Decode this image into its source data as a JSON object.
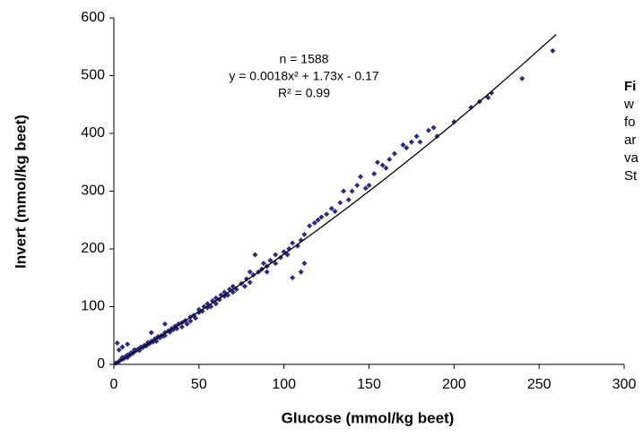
{
  "chart_data": {
    "type": "scatter",
    "xlabel": "Glucose (mmol/kg beet)",
    "ylabel": "Invert (mmol/kg beet)",
    "annotations": [
      "n = 1588",
      "y = 0.0018x² + 1.73x - 0.17",
      "R² = 0.99"
    ],
    "caption": [
      "Fi",
      "w",
      "fo",
      "ar",
      "va",
      "St"
    ],
    "xlim": [
      0,
      300
    ],
    "ylim": [
      0,
      600
    ],
    "xticks": [
      0,
      50,
      100,
      150,
      200,
      250,
      300
    ],
    "yticks": [
      0,
      100,
      200,
      300,
      400,
      500,
      600
    ],
    "color": "#2a2a86",
    "line_color": "#000000",
    "caption_color": "#1a56d6",
    "x": [
      1,
      2,
      3,
      4,
      5,
      5,
      6,
      7,
      8,
      8,
      9,
      10,
      10,
      11,
      12,
      12,
      13,
      14,
      15,
      15,
      16,
      17,
      18,
      19,
      20,
      20,
      21,
      22,
      23,
      24,
      25,
      25,
      26,
      27,
      28,
      29,
      30,
      30,
      32,
      33,
      34,
      35,
      36,
      37,
      38,
      40,
      40,
      42,
      43,
      45,
      45,
      47,
      48,
      50,
      50,
      52,
      53,
      55,
      55,
      57,
      58,
      60,
      60,
      62,
      63,
      65,
      65,
      67,
      68,
      70,
      70,
      72,
      75,
      77,
      78,
      80,
      80,
      82,
      83,
      85,
      87,
      88,
      90,
      90,
      92,
      95,
      95,
      98,
      100,
      102,
      103,
      105,
      105,
      108,
      110,
      110,
      112,
      112,
      115,
      118,
      120,
      122,
      125,
      128,
      130,
      133,
      135,
      138,
      140,
      143,
      145,
      148,
      150,
      153,
      155,
      158,
      160,
      162,
      165,
      170,
      172,
      175,
      178,
      180,
      185,
      188,
      190,
      200,
      210,
      215,
      220,
      222,
      240,
      258,
      2,
      5,
      3,
      8,
      22,
      30
    ],
    "y": [
      2,
      3,
      5,
      8,
      9,
      12,
      10,
      14,
      12,
      16,
      15,
      18,
      20,
      19,
      22,
      25,
      24,
      26,
      28,
      24,
      30,
      29,
      33,
      32,
      35,
      38,
      36,
      40,
      39,
      44,
      45,
      40,
      48,
      46,
      50,
      49,
      55,
      50,
      58,
      56,
      62,
      60,
      66,
      62,
      70,
      72,
      65,
      76,
      70,
      82,
      75,
      85,
      80,
      90,
      95,
      92,
      100,
      98,
      105,
      100,
      110,
      105,
      115,
      112,
      120,
      118,
      125,
      120,
      130,
      125,
      135,
      130,
      140,
      135,
      148,
      142,
      160,
      155,
      190,
      160,
      165,
      175,
      160,
      170,
      180,
      175,
      190,
      185,
      195,
      190,
      200,
      210,
      150,
      205,
      215,
      160,
      175,
      225,
      240,
      245,
      250,
      255,
      260,
      270,
      265,
      280,
      300,
      285,
      300,
      310,
      325,
      305,
      310,
      330,
      350,
      345,
      340,
      355,
      365,
      380,
      375,
      385,
      395,
      385,
      405,
      410,
      395,
      420,
      445,
      455,
      462,
      470,
      495,
      543,
      37,
      30,
      25,
      35,
      55,
      70
    ],
    "trendline": {
      "x": [
        0,
        20,
        40,
        60,
        80,
        100,
        120,
        140,
        160,
        180,
        200,
        220,
        240,
        260
      ],
      "y": [
        -0.17,
        35.15,
        71.91,
        110.11,
        149.75,
        190.83,
        233.35,
        277.31,
        322.71,
        369.55,
        417.83,
        467.55,
        518.71,
        571.31
      ]
    }
  }
}
